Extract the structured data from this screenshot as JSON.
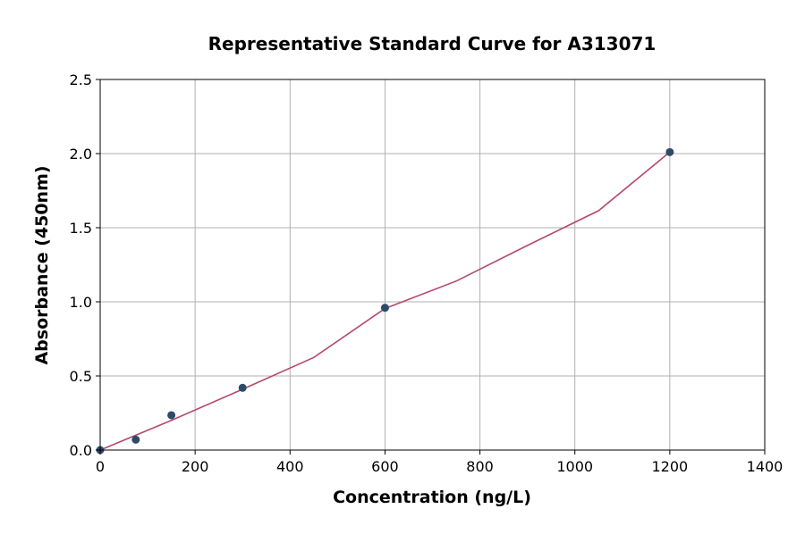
{
  "chart_data": {
    "type": "scatter",
    "title": "Representative Standard Curve for A313071",
    "xlabel": "Concentration (ng/L)",
    "ylabel": "Absorbance (450nm)",
    "xlim": [
      0,
      1400
    ],
    "ylim": [
      0,
      2.5
    ],
    "xticks": [
      0,
      200,
      400,
      600,
      800,
      1000,
      1200,
      1400
    ],
    "xtick_labels": [
      "0",
      "200",
      "400",
      "600",
      "800",
      "1000",
      "1200",
      "1400"
    ],
    "yticks": [
      0,
      0.5,
      1.0,
      1.5,
      2.0,
      2.5
    ],
    "ytick_labels": [
      "0.0",
      "0.5",
      "1.0",
      "1.5",
      "2.0",
      "2.5"
    ],
    "grid": true,
    "series": [
      {
        "kind": "points",
        "x": [
          0,
          75,
          150,
          300,
          600,
          1200
        ],
        "y": [
          0.0,
          0.07,
          0.235,
          0.42,
          0.96,
          2.01
        ],
        "color": "#2e4a6b"
      },
      {
        "kind": "fit-line",
        "x": [
          0,
          75,
          150,
          300,
          450,
          600,
          750,
          900,
          1050,
          1200
        ],
        "y": [
          0.0,
          0.1,
          0.2,
          0.41,
          0.625,
          0.955,
          1.14,
          1.38,
          1.615,
          2.01
        ],
        "color": "#b5496b"
      }
    ]
  }
}
